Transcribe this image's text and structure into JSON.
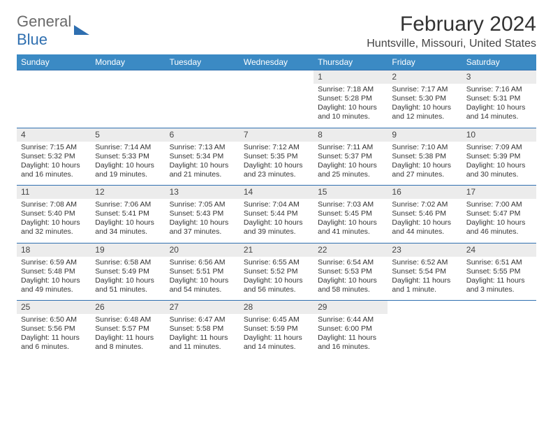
{
  "logo": {
    "line1": "General",
    "line2": "Blue",
    "icon_color": "#2f6fb0"
  },
  "title": "February 2024",
  "location": "Huntsville, Missouri, United States",
  "dow": [
    "Sunday",
    "Monday",
    "Tuesday",
    "Wednesday",
    "Thursday",
    "Friday",
    "Saturday"
  ],
  "header_bg": "#3b8ac4",
  "day_bg": "#ececec",
  "border_color": "#2f6fb0",
  "weeks": [
    [
      null,
      null,
      null,
      null,
      {
        "n": "1",
        "sr": "7:18 AM",
        "ss": "5:28 PM",
        "dl": "10 hours and 10 minutes."
      },
      {
        "n": "2",
        "sr": "7:17 AM",
        "ss": "5:30 PM",
        "dl": "10 hours and 12 minutes."
      },
      {
        "n": "3",
        "sr": "7:16 AM",
        "ss": "5:31 PM",
        "dl": "10 hours and 14 minutes."
      }
    ],
    [
      {
        "n": "4",
        "sr": "7:15 AM",
        "ss": "5:32 PM",
        "dl": "10 hours and 16 minutes."
      },
      {
        "n": "5",
        "sr": "7:14 AM",
        "ss": "5:33 PM",
        "dl": "10 hours and 19 minutes."
      },
      {
        "n": "6",
        "sr": "7:13 AM",
        "ss": "5:34 PM",
        "dl": "10 hours and 21 minutes."
      },
      {
        "n": "7",
        "sr": "7:12 AM",
        "ss": "5:35 PM",
        "dl": "10 hours and 23 minutes."
      },
      {
        "n": "8",
        "sr": "7:11 AM",
        "ss": "5:37 PM",
        "dl": "10 hours and 25 minutes."
      },
      {
        "n": "9",
        "sr": "7:10 AM",
        "ss": "5:38 PM",
        "dl": "10 hours and 27 minutes."
      },
      {
        "n": "10",
        "sr": "7:09 AM",
        "ss": "5:39 PM",
        "dl": "10 hours and 30 minutes."
      }
    ],
    [
      {
        "n": "11",
        "sr": "7:08 AM",
        "ss": "5:40 PM",
        "dl": "10 hours and 32 minutes."
      },
      {
        "n": "12",
        "sr": "7:06 AM",
        "ss": "5:41 PM",
        "dl": "10 hours and 34 minutes."
      },
      {
        "n": "13",
        "sr": "7:05 AM",
        "ss": "5:43 PM",
        "dl": "10 hours and 37 minutes."
      },
      {
        "n": "14",
        "sr": "7:04 AM",
        "ss": "5:44 PM",
        "dl": "10 hours and 39 minutes."
      },
      {
        "n": "15",
        "sr": "7:03 AM",
        "ss": "5:45 PM",
        "dl": "10 hours and 41 minutes."
      },
      {
        "n": "16",
        "sr": "7:02 AM",
        "ss": "5:46 PM",
        "dl": "10 hours and 44 minutes."
      },
      {
        "n": "17",
        "sr": "7:00 AM",
        "ss": "5:47 PM",
        "dl": "10 hours and 46 minutes."
      }
    ],
    [
      {
        "n": "18",
        "sr": "6:59 AM",
        "ss": "5:48 PM",
        "dl": "10 hours and 49 minutes."
      },
      {
        "n": "19",
        "sr": "6:58 AM",
        "ss": "5:49 PM",
        "dl": "10 hours and 51 minutes."
      },
      {
        "n": "20",
        "sr": "6:56 AM",
        "ss": "5:51 PM",
        "dl": "10 hours and 54 minutes."
      },
      {
        "n": "21",
        "sr": "6:55 AM",
        "ss": "5:52 PM",
        "dl": "10 hours and 56 minutes."
      },
      {
        "n": "22",
        "sr": "6:54 AM",
        "ss": "5:53 PM",
        "dl": "10 hours and 58 minutes."
      },
      {
        "n": "23",
        "sr": "6:52 AM",
        "ss": "5:54 PM",
        "dl": "11 hours and 1 minute."
      },
      {
        "n": "24",
        "sr": "6:51 AM",
        "ss": "5:55 PM",
        "dl": "11 hours and 3 minutes."
      }
    ],
    [
      {
        "n": "25",
        "sr": "6:50 AM",
        "ss": "5:56 PM",
        "dl": "11 hours and 6 minutes."
      },
      {
        "n": "26",
        "sr": "6:48 AM",
        "ss": "5:57 PM",
        "dl": "11 hours and 8 minutes."
      },
      {
        "n": "27",
        "sr": "6:47 AM",
        "ss": "5:58 PM",
        "dl": "11 hours and 11 minutes."
      },
      {
        "n": "28",
        "sr": "6:45 AM",
        "ss": "5:59 PM",
        "dl": "11 hours and 14 minutes."
      },
      {
        "n": "29",
        "sr": "6:44 AM",
        "ss": "6:00 PM",
        "dl": "11 hours and 16 minutes."
      },
      null,
      null
    ]
  ],
  "labels": {
    "sunrise": "Sunrise: ",
    "sunset": "Sunset: ",
    "daylight": "Daylight: "
  }
}
